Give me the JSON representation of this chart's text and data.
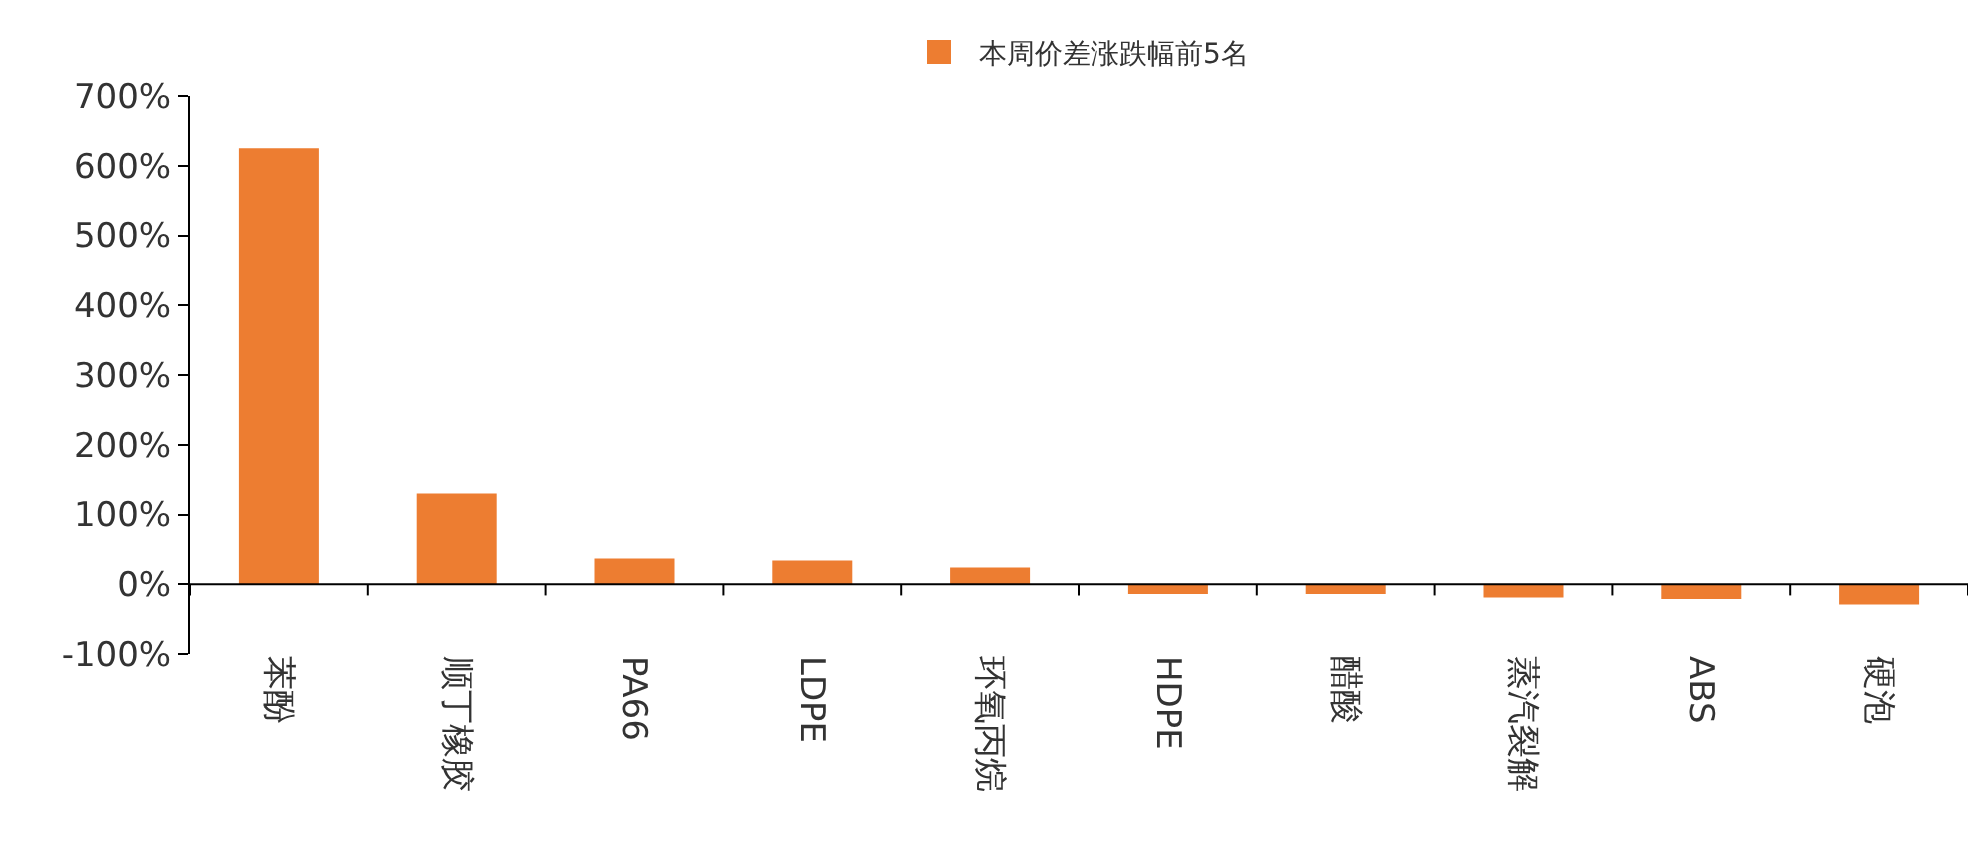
{
  "chart_data": {
    "type": "bar",
    "categories": [
      "苯酚",
      "顺丁橡胶",
      "PA66",
      "LDPE",
      "环氧丙烷",
      "HDPE",
      "醋酸",
      "蒸汽裂解",
      "ABS",
      "硬泡"
    ],
    "series": [
      {
        "name": "本周价差涨跌幅前5名",
        "color": "#ed7d31",
        "values": [
          625,
          130,
          37,
          34,
          24,
          -14,
          -14,
          -19,
          -21,
          -29
        ]
      }
    ],
    "ylim": [
      -100,
      700
    ],
    "yticks": [
      {
        "value": -100,
        "label": "-100%"
      },
      {
        "value": 0,
        "label": "0%"
      },
      {
        "value": 100,
        "label": "100%"
      },
      {
        "value": 200,
        "label": "200%"
      },
      {
        "value": 300,
        "label": "300%"
      },
      {
        "value": 400,
        "label": "400%"
      },
      {
        "value": 500,
        "label": "500%"
      },
      {
        "value": 600,
        "label": "600%"
      },
      {
        "value": 700,
        "label": "700%"
      }
    ],
    "legend": "top"
  }
}
